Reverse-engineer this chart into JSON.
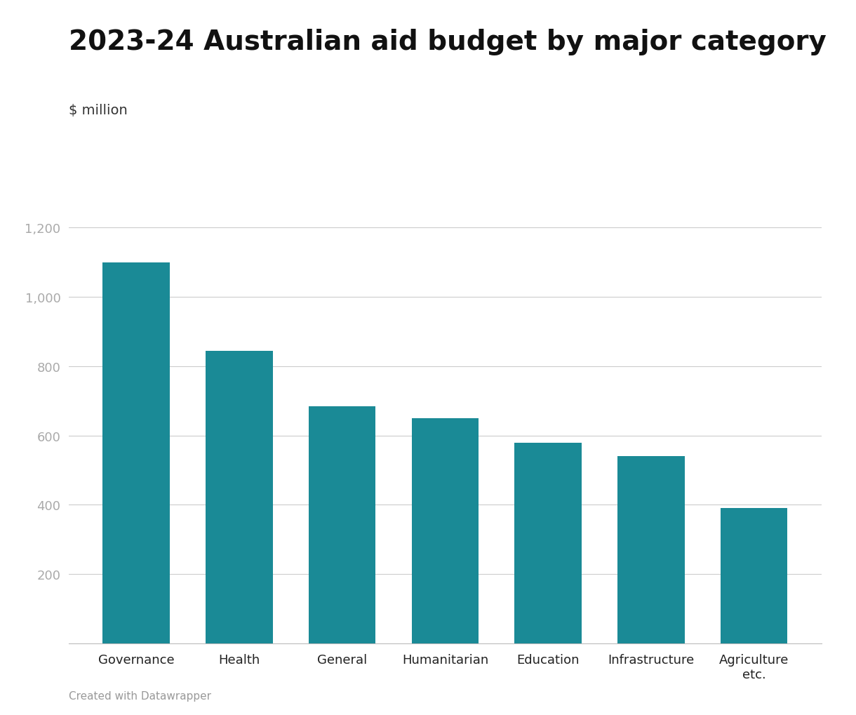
{
  "title": "2023-24 Australian aid budget by major category",
  "ylabel": "$ million",
  "categories": [
    "Governance",
    "Health",
    "General",
    "Humanitarian",
    "Education",
    "Infrastructure",
    "Agriculture\netc."
  ],
  "values": [
    1100,
    845,
    685,
    650,
    578,
    540,
    390
  ],
  "bar_color": "#1a8a96",
  "background_color": "#ffffff",
  "yticks": [
    200,
    400,
    600,
    800,
    1000,
    1200
  ],
  "ylim": [
    0,
    1280
  ],
  "grid_color": "#cccccc",
  "title_fontsize": 28,
  "ylabel_fontsize": 14,
  "tick_label_fontsize": 13,
  "xtick_fontsize": 13,
  "footer_text": "Created with Datawrapper",
  "footer_fontsize": 11,
  "tick_color": "#aaaaaa",
  "axis_color": "#333333"
}
